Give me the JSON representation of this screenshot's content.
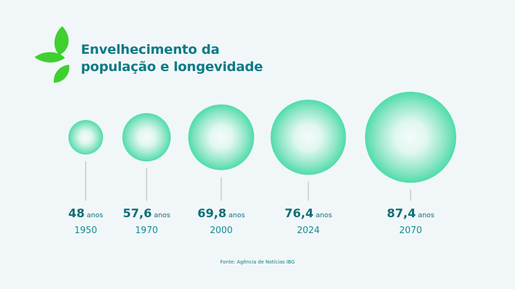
{
  "title_line1": "Envelhecimento da",
  "title_line2": "população e longevidade",
  "source": "Fonte: Agência de Notícias IBG",
  "colors": {
    "background": "#f1f7f8",
    "title": "#0e7a86",
    "leaf": "#3fd02f",
    "bubble_center": "#f4fbfb",
    "bubble_edge": "#45dca5",
    "line": "#a9b4b6"
  },
  "chart_data": {
    "type": "bubble",
    "unit": "anos",
    "points": [
      {
        "year": "1950",
        "value": 48,
        "label": "48"
      },
      {
        "year": "1970",
        "value": 57.6,
        "label": "57,6"
      },
      {
        "year": "2000",
        "value": 69.8,
        "label": "69,8"
      },
      {
        "year": "2024",
        "value": 76.4,
        "label": "76,4"
      },
      {
        "year": "2070",
        "value": 87.4,
        "label": "87,4"
      }
    ]
  }
}
